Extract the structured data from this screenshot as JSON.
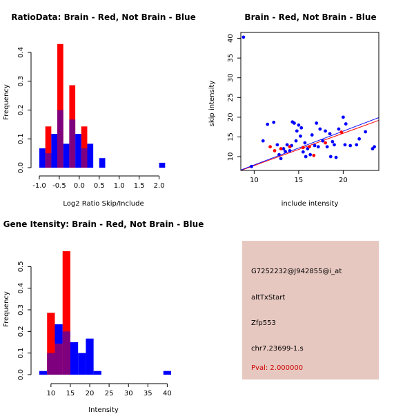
{
  "colors": {
    "red": "#ff0000",
    "blue": "#0000ff",
    "overlap": "#7f007f",
    "panel_bg": "#e7c8c0",
    "pval": "#cc0000",
    "black": "#000000"
  },
  "chart_data": [
    {
      "type": "bar",
      "subtype": "overlaid-histogram",
      "title": "RatioData: Brain - Red, Not Brain - Blue",
      "xlabel": "Log2 Ratio Skip/Include",
      "ylabel": "Frequency",
      "xlim": [
        -1.0,
        2.3
      ],
      "ylim": [
        0,
        0.45
      ],
      "xticks": [
        -1.0,
        -0.5,
        0.0,
        0.5,
        1.0,
        1.5,
        2.0
      ],
      "xtick_labels": [
        "-1.0",
        "-0.5",
        "0.0",
        "0.5",
        "1.0",
        "1.5",
        "2.0"
      ],
      "yticks": [
        0,
        0.1,
        0.2,
        0.3,
        0.4
      ],
      "ytick_labels": [
        "0.0",
        "0.1",
        "0.2",
        "0.3",
        "0.4"
      ],
      "series": [
        {
          "name": "Brain",
          "color": "red",
          "bins": [
            {
              "x0": -0.85,
              "x1": -0.7,
              "value": 0.143
            },
            {
              "x0": -0.55,
              "x1": -0.4,
              "value": 0.429
            },
            {
              "x0": -0.25,
              "x1": -0.1,
              "value": 0.286
            },
            {
              "x0": 0.05,
              "x1": 0.2,
              "value": 0.143
            }
          ]
        },
        {
          "name": "Not Brain",
          "color": "blue",
          "bins": [
            {
              "x0": -1.0,
              "x1": -0.85,
              "value": 0.067
            },
            {
              "x0": -0.85,
              "x1": -0.7,
              "value": 0.05
            },
            {
              "x0": -0.7,
              "x1": -0.55,
              "value": 0.117
            },
            {
              "x0": -0.55,
              "x1": -0.4,
              "value": 0.2
            },
            {
              "x0": -0.4,
              "x1": -0.25,
              "value": 0.083
            },
            {
              "x0": -0.25,
              "x1": -0.1,
              "value": 0.167
            },
            {
              "x0": -0.1,
              "x1": 0.05,
              "value": 0.117
            },
            {
              "x0": 0.05,
              "x1": 0.2,
              "value": 0.067
            },
            {
              "x0": 0.2,
              "x1": 0.35,
              "value": 0.083
            },
            {
              "x0": 0.5,
              "x1": 0.65,
              "value": 0.033
            },
            {
              "x0": 2.0,
              "x1": 2.15,
              "value": 0.017
            }
          ]
        }
      ]
    },
    {
      "type": "scatter",
      "title": "Brain - Red, Not Brain - Blue",
      "xlabel": "include intensity",
      "ylabel": "skip intensity",
      "xlim": [
        8.5,
        24
      ],
      "ylim": [
        6.5,
        41.5
      ],
      "xticks": [
        10,
        15,
        20
      ],
      "xtick_labels": [
        "10",
        "15",
        "20"
      ],
      "yticks": [
        10,
        15,
        20,
        25,
        30,
        35,
        40
      ],
      "ytick_labels": [
        "10",
        "15",
        "20",
        "25",
        "30",
        "35",
        "40"
      ],
      "series": [
        {
          "name": "Brain",
          "color": "red",
          "points": [
            [
              11.8,
              12.5
            ],
            [
              12.3,
              11.5
            ],
            [
              13.0,
              12.0
            ],
            [
              14.0,
              12.5
            ],
            [
              15.5,
              12.3
            ],
            [
              16.2,
              12.5
            ],
            [
              16.7,
              10.3
            ],
            [
              18.0,
              13.5
            ],
            [
              19.8,
              16.2
            ]
          ]
        },
        {
          "name": "Not Brain",
          "color": "blue",
          "points": [
            [
              8.8,
              40.3
            ],
            [
              9.7,
              7.5
            ],
            [
              11.0,
              14.0
            ],
            [
              11.5,
              18.2
            ],
            [
              12.2,
              18.7
            ],
            [
              12.6,
              13.0
            ],
            [
              12.8,
              10.5
            ],
            [
              13.0,
              9.5
            ],
            [
              13.3,
              12.0
            ],
            [
              13.5,
              11.3
            ],
            [
              13.7,
              13.0
            ],
            [
              14.0,
              11.5
            ],
            [
              14.2,
              12.8
            ],
            [
              14.3,
              18.8
            ],
            [
              14.5,
              18.5
            ],
            [
              14.7,
              14.0
            ],
            [
              14.8,
              16.5
            ],
            [
              15.0,
              18.0
            ],
            [
              15.2,
              15.2
            ],
            [
              15.3,
              17.3
            ],
            [
              15.5,
              11.2
            ],
            [
              15.7,
              13.5
            ],
            [
              15.8,
              10.0
            ],
            [
              16.0,
              12.0
            ],
            [
              16.3,
              10.5
            ],
            [
              16.5,
              15.5
            ],
            [
              16.8,
              12.8
            ],
            [
              17.0,
              18.5
            ],
            [
              17.2,
              12.5
            ],
            [
              17.4,
              17.0
            ],
            [
              17.7,
              14.0
            ],
            [
              18.0,
              16.5
            ],
            [
              18.2,
              12.5
            ],
            [
              18.5,
              15.8
            ],
            [
              18.6,
              10.0
            ],
            [
              18.8,
              13.8
            ],
            [
              19.0,
              13.0
            ],
            [
              19.2,
              9.8
            ],
            [
              19.5,
              17.0
            ],
            [
              20.0,
              20.0
            ],
            [
              20.2,
              13.0
            ],
            [
              20.3,
              18.3
            ],
            [
              20.8,
              12.8
            ],
            [
              21.5,
              13.0
            ],
            [
              21.8,
              14.5
            ],
            [
              22.5,
              16.3
            ],
            [
              23.3,
              12.0
            ],
            [
              23.5,
              12.5
            ]
          ]
        }
      ],
      "fit_lines": [
        {
          "name": "Brain fit",
          "color": "red",
          "from": [
            8.5,
            6.5
          ],
          "to": [
            24,
            19.2
          ]
        },
        {
          "name": "Not Brain fit",
          "color": "blue",
          "from": [
            8.5,
            6.6
          ],
          "to": [
            24,
            19.9
          ]
        }
      ]
    },
    {
      "type": "bar",
      "subtype": "overlaid-histogram",
      "title": "Gene Itensity: Brain - Red, Not Brain - Blue",
      "xlabel": "Intensity",
      "ylabel": "Frequency",
      "xlim": [
        7,
        41
      ],
      "ylim": [
        0,
        0.6
      ],
      "xticks": [
        10,
        15,
        20,
        25,
        30,
        35,
        40
      ],
      "xtick_labels": [
        "10",
        "15",
        "20",
        "25",
        "30",
        "35",
        "40"
      ],
      "yticks": [
        0,
        0.1,
        0.2,
        0.3,
        0.4,
        0.5
      ],
      "ytick_labels": [
        "0.0",
        "0.1",
        "0.2",
        "0.3",
        "0.4",
        "0.5"
      ],
      "series": [
        {
          "name": "Brain",
          "color": "red",
          "bins": [
            {
              "x0": 9,
              "x1": 11,
              "value": 0.286
            },
            {
              "x0": 11,
              "x1": 13,
              "value": 0.143
            },
            {
              "x0": 13,
              "x1": 15,
              "value": 0.571
            }
          ]
        },
        {
          "name": "Not Brain",
          "color": "blue",
          "bins": [
            {
              "x0": 7,
              "x1": 9,
              "value": 0.017
            },
            {
              "x0": 9,
              "x1": 11,
              "value": 0.1
            },
            {
              "x0": 11,
              "x1": 13,
              "value": 0.233
            },
            {
              "x0": 13,
              "x1": 15,
              "value": 0.2
            },
            {
              "x0": 15,
              "x1": 17,
              "value": 0.15
            },
            {
              "x0": 17,
              "x1": 19,
              "value": 0.1
            },
            {
              "x0": 19,
              "x1": 21,
              "value": 0.167
            },
            {
              "x0": 21,
              "x1": 23,
              "value": 0.017
            },
            {
              "x0": 39,
              "x1": 41,
              "value": 0.017
            }
          ]
        }
      ]
    }
  ],
  "info_panel": {
    "probe": "G7252232@J942855@i_at",
    "event_type": "altTxStart",
    "gene": "Zfp553",
    "location": "chr7.23699-1.s",
    "pval": "Pval: 2.000000"
  }
}
